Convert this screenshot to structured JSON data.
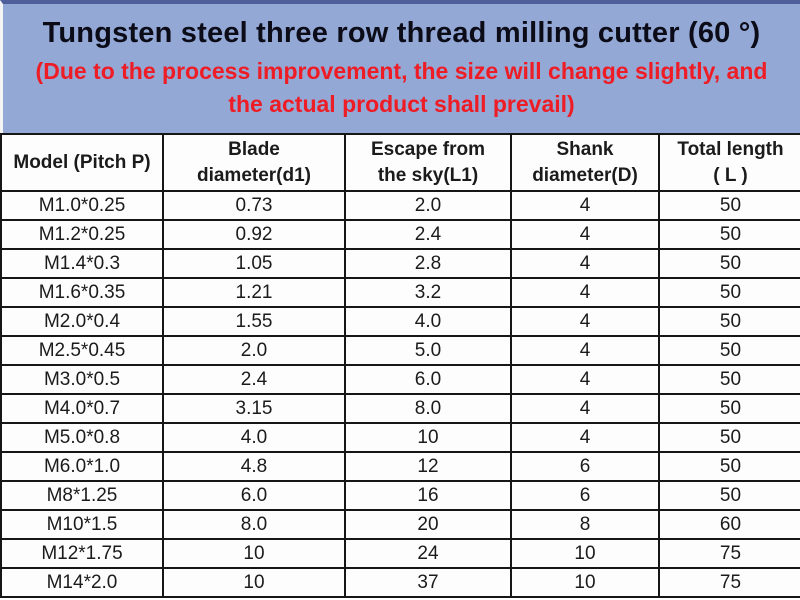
{
  "banner": {
    "title": "Tungsten steel three row thread milling cutter (60 °)",
    "subtitle_line1": "(Due to the process improvement, the size will change slightly, and",
    "subtitle_line2": "the actual product shall prevail)",
    "background_color": "#94a8d6",
    "title_color": "#0c0c18",
    "subtitle_color": "#ee1c24"
  },
  "table": {
    "border_color": "#161616",
    "columns": [
      {
        "line1": "Model (Pitch P)",
        "line2": ""
      },
      {
        "line1": "Blade",
        "line2": "diameter(d1)"
      },
      {
        "line1": "Escape from",
        "line2": "the sky(L1)"
      },
      {
        "line1": "Shank",
        "line2": "diameter(D)"
      },
      {
        "line1": "Total length",
        "line2": "( L )"
      }
    ],
    "rows": [
      [
        "M1.0*0.25",
        "0.73",
        "2.0",
        "4",
        "50"
      ],
      [
        "M1.2*0.25",
        "0.92",
        "2.4",
        "4",
        "50"
      ],
      [
        "M1.4*0.3",
        "1.05",
        "2.8",
        "4",
        "50"
      ],
      [
        "M1.6*0.35",
        "1.21",
        "3.2",
        "4",
        "50"
      ],
      [
        "M2.0*0.4",
        "1.55",
        "4.0",
        "4",
        "50"
      ],
      [
        "M2.5*0.45",
        "2.0",
        "5.0",
        "4",
        "50"
      ],
      [
        "M3.0*0.5",
        "2.4",
        "6.0",
        "4",
        "50"
      ],
      [
        "M4.0*0.7",
        "3.15",
        "8.0",
        "4",
        "50"
      ],
      [
        "M5.0*0.8",
        "4.0",
        "10",
        "4",
        "50"
      ],
      [
        "M6.0*1.0",
        "4.8",
        "12",
        "6",
        "50"
      ],
      [
        "M8*1.25",
        "6.0",
        "16",
        "6",
        "50"
      ],
      [
        "M10*1.5",
        "8.0",
        "20",
        "8",
        "60"
      ],
      [
        "M12*1.75",
        "10",
        "24",
        "10",
        "75"
      ],
      [
        "M14*2.0",
        "10",
        "37",
        "10",
        "75"
      ]
    ]
  }
}
